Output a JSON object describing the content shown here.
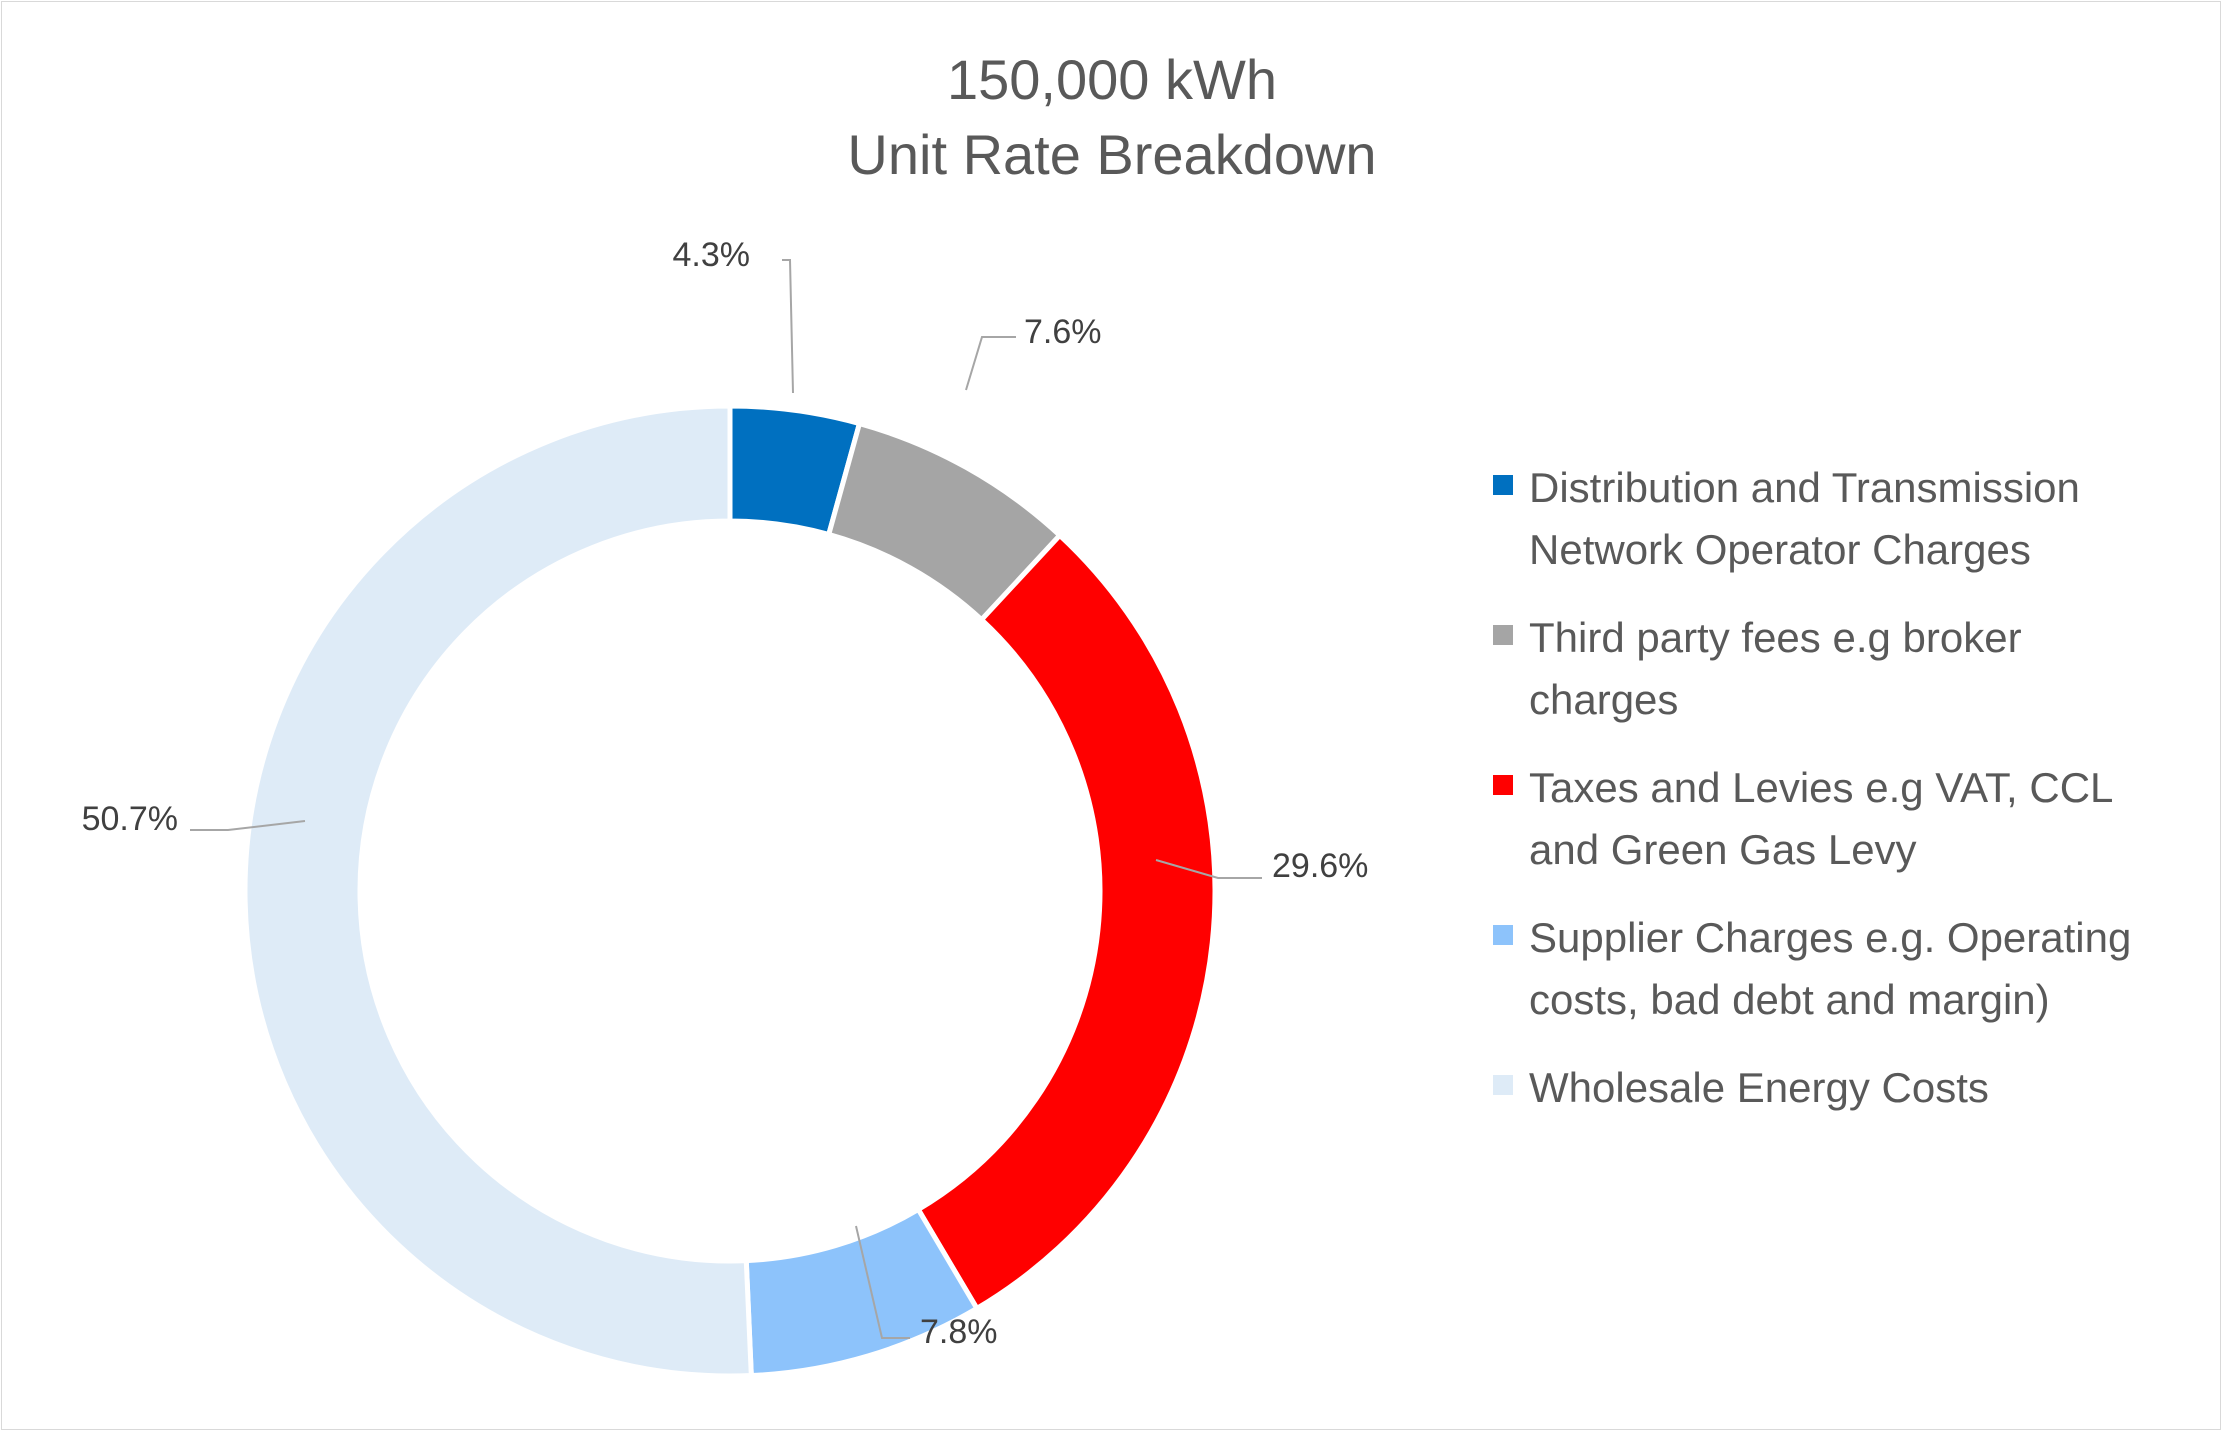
{
  "chart_data": {
    "type": "pie",
    "subtype": "doughnut",
    "title": "150,000 kWh",
    "subtitle": "Unit Rate Breakdown",
    "legend_position": "right",
    "series": [
      {
        "name": "Distribution and Transmission Network Operator Charges",
        "value": 4.3,
        "label": "4.3%",
        "color": "#0070c0"
      },
      {
        "name": "Third party fees e.g broker charges",
        "value": 7.6,
        "label": "7.6%",
        "color": "#a5a5a5"
      },
      {
        "name": "Taxes and Levies e.g VAT, CCL and Green Gas Levy",
        "value": 29.6,
        "label": "29.6%",
        "color": "#ff0000"
      },
      {
        "name": "Supplier Charges e.g. Operating costs, bad debt and margin)",
        "value": 7.8,
        "label": "7.8%",
        "color": "#8dc3fb"
      },
      {
        "name": "Wholesale Energy Costs",
        "value": 50.7,
        "label": "50.7%",
        "color": "#deebf7"
      }
    ]
  },
  "legend": {
    "items": [
      {
        "lines": [
          "Distribution and Transmission",
          "Network Operator Charges"
        ],
        "color": "#0070c0"
      },
      {
        "lines": [
          "Third party fees e.g broker",
          "charges"
        ],
        "color": "#a5a5a5"
      },
      {
        "lines": [
          "Taxes and Levies e.g VAT, CCL",
          "and Green Gas Levy"
        ],
        "color": "#ff0000"
      },
      {
        "lines": [
          "Supplier Charges e.g. Operating",
          "costs, bad debt and margin)"
        ],
        "color": "#8dc3fb"
      },
      {
        "lines": [
          "Wholesale Energy Costs"
        ],
        "color": "#deebf7"
      }
    ]
  }
}
